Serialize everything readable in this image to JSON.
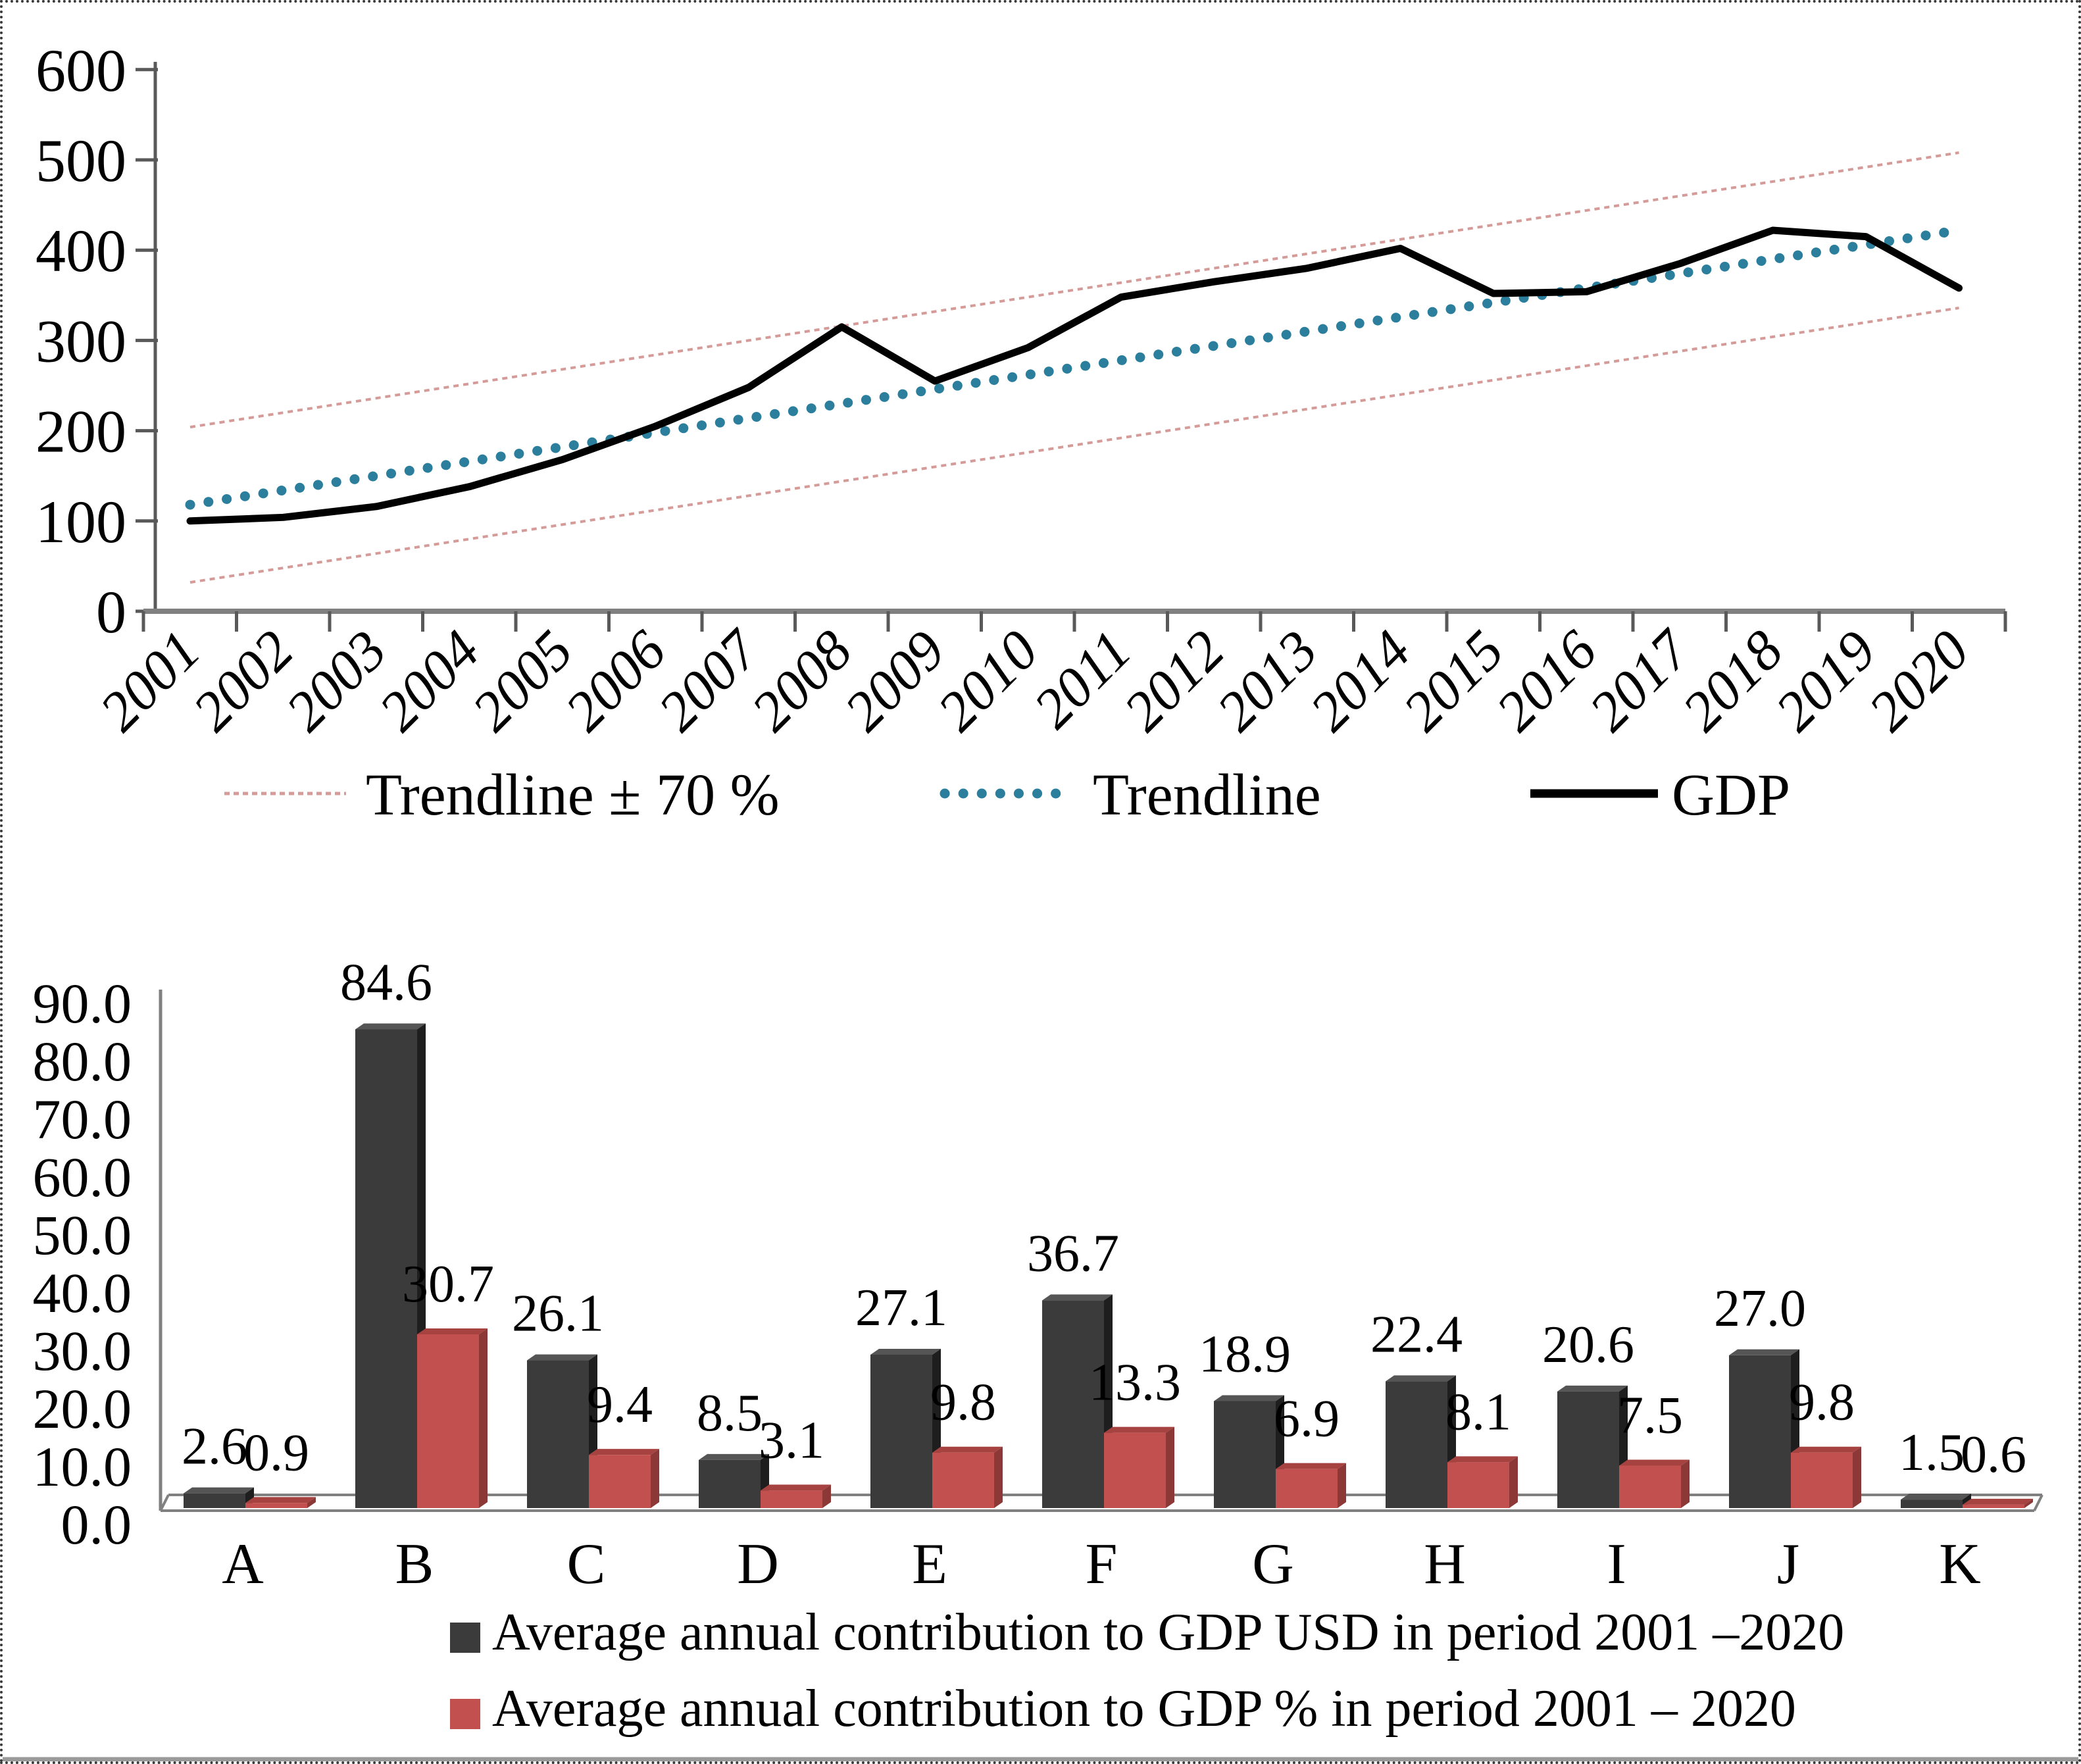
{
  "figure": {
    "background": "#ffffff",
    "border_color": "#3a3a3a",
    "axis_color": "#808080"
  },
  "chart_data": [
    {
      "type": "line",
      "title": "",
      "x": [
        2001,
        2002,
        2003,
        2004,
        2005,
        2006,
        2007,
        2008,
        2009,
        2010,
        2011,
        2012,
        2013,
        2014,
        2015,
        2016,
        2017,
        2018,
        2019,
        2020
      ],
      "ylim": [
        0,
        600
      ],
      "yticks": [
        0,
        100,
        200,
        300,
        400,
        500,
        600
      ],
      "grid": false,
      "legend_position": "bottom",
      "legend": [
        "Trendline ± 70 %",
        "Trendline",
        "GDP"
      ],
      "series": [
        {
          "name": "Trendline ± 70 % (upper)",
          "legend": "Trendline ± 70 %",
          "color": "#D49B98",
          "style": "band",
          "values": [
            204,
            220,
            236,
            252,
            268,
            284,
            300,
            316,
            332,
            348,
            364,
            380,
            396,
            412,
            428,
            444,
            460,
            476,
            492,
            508
          ]
        },
        {
          "name": "Trendline ± 70 % (lower)",
          "legend": "Trendline ± 70 %",
          "color": "#D49B98",
          "style": "band",
          "values": [
            32,
            48,
            64,
            80,
            96,
            112,
            128,
            144,
            160,
            176,
            192,
            208,
            224,
            240,
            256,
            272,
            288,
            304,
            320,
            336
          ]
        },
        {
          "name": "Trendline",
          "legend": "Trendline",
          "color": "#2B7F9C",
          "style": "dotted",
          "values": [
            118,
            134,
            150,
            166,
            182,
            198,
            214,
            230,
            246,
            262,
            278,
            294,
            310,
            326,
            342,
            358,
            374,
            390,
            406,
            422
          ]
        },
        {
          "name": "GDP",
          "legend": "GDP",
          "color": "#000000",
          "style": "solid",
          "values": [
            100,
            104,
            116,
            138,
            168,
            205,
            248,
            315,
            255,
            292,
            348,
            365,
            380,
            402,
            352,
            354,
            385,
            422,
            415,
            358
          ]
        }
      ]
    },
    {
      "type": "bar",
      "title": "",
      "categories": [
        "A",
        "B",
        "C",
        "D",
        "E",
        "F",
        "G",
        "H",
        "I",
        "J",
        "K"
      ],
      "ylim": [
        0,
        90
      ],
      "yticks": [
        0,
        10,
        20,
        30,
        40,
        50,
        60,
        70,
        80,
        90
      ],
      "ytick_format": "one-decimal",
      "value_labels": true,
      "legend_position": "bottom",
      "series": [
        {
          "name": "Average annual contribution to GDP USD in period 2001 –2020",
          "color": "#3B3B3B",
          "side_color": "#1E1E1E",
          "top_color": "#555555",
          "values": [
            2.6,
            84.6,
            26.1,
            8.5,
            27.1,
            36.7,
            18.9,
            22.4,
            20.6,
            27.0,
            1.5
          ]
        },
        {
          "name": "Average annual contribution to GDP % in period 2001 – 2020",
          "color": "#C2504E",
          "side_color": "#8C3836",
          "top_color": "#A64341",
          "values": [
            0.9,
            30.7,
            9.4,
            3.1,
            9.8,
            13.3,
            6.9,
            8.1,
            7.5,
            9.8,
            0.6
          ]
        }
      ]
    }
  ]
}
